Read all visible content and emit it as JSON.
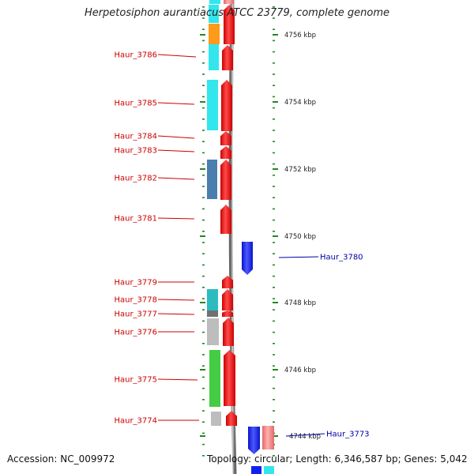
{
  "title": "Herpetosiphon aurantiacus ATCC 23779, complete genome",
  "accession_text": "Accession: NC_009972",
  "topology_text": "Topology: circular; Length: 6,346,587 bp; Genes: 5,042",
  "colors": {
    "forward_gene": "#ee1111",
    "reverse_gene": "#1122ee",
    "left_label": "#cc0000",
    "right_label": "#0000aa",
    "tick": "#228822",
    "backbone": "#888888"
  },
  "genes": [
    {
      "tag": "Haur_3786",
      "strand": "+"
    },
    {
      "tag": "Haur_3785",
      "strand": "+"
    },
    {
      "tag": "Haur_3784",
      "strand": "+"
    },
    {
      "tag": "Haur_3783",
      "strand": "+"
    },
    {
      "tag": "Haur_3782",
      "strand": "+"
    },
    {
      "tag": "Haur_3781",
      "strand": "+"
    },
    {
      "tag": "Haur_3780",
      "strand": "-"
    },
    {
      "tag": "Haur_3779",
      "strand": "+"
    },
    {
      "tag": "Haur_3778",
      "strand": "+"
    },
    {
      "tag": "Haur_3777",
      "strand": "+"
    },
    {
      "tag": "Haur_3776",
      "strand": "+"
    },
    {
      "tag": "Haur_3775",
      "strand": "+"
    },
    {
      "tag": "Haur_3774",
      "strand": "+"
    },
    {
      "tag": "Haur_3773",
      "strand": "-"
    }
  ],
  "scale_labels": [
    "4756 kbp",
    "4754 kbp",
    "4752 kbp",
    "4750 kbp",
    "4748 kbp",
    "4746 kbp",
    "4744 kbp"
  ]
}
